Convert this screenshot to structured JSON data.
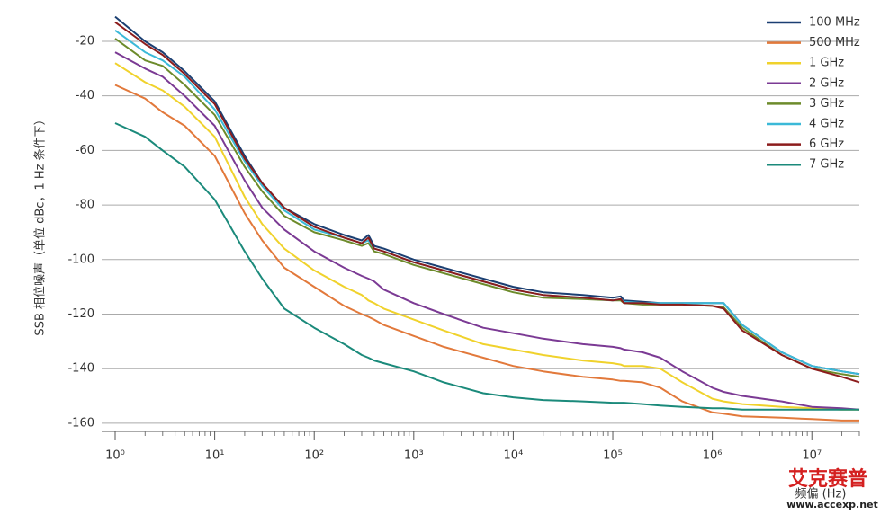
{
  "chart_data": {
    "type": "line",
    "y_label": "SSB 相位噪声（单位 dBc，1 Hz 条件下）",
    "x_label": "频偏 (Hz)",
    "xscale": "log",
    "x": [
      1,
      2,
      3,
      5,
      10,
      20,
      30,
      50,
      100,
      200,
      300,
      350,
      400,
      500,
      1000,
      2000,
      5000,
      10000,
      20000,
      50000,
      100000,
      120000,
      130000,
      200000,
      300000,
      500000,
      1000000,
      1300000,
      2000000,
      5000000,
      10000000,
      20000000,
      30000000
    ],
    "series": [
      {
        "name": "100 MHz",
        "color": "#1b3f72",
        "values": [
          -11,
          -20,
          -24,
          -31,
          -42,
          -62,
          -72,
          -81,
          -87,
          -91,
          -93,
          -91,
          -95,
          -96,
          -100,
          -103,
          -107,
          -110,
          -112,
          -113,
          -114,
          -113.5,
          -115,
          -115.5,
          -116,
          -116,
          -116,
          -116,
          -124,
          -134,
          -139,
          -141,
          -142
        ]
      },
      {
        "name": "500 MHz",
        "color": "#e2793b",
        "values": [
          -36,
          -41,
          -46,
          -51,
          -62,
          -83,
          -93,
          -103,
          -110,
          -117,
          -120,
          -121,
          -122,
          -124,
          -128,
          -132,
          -136,
          -139,
          -141,
          -143,
          -144,
          -144.5,
          -144.5,
          -145,
          -147,
          -152,
          -156,
          -156.5,
          -157.5,
          -158,
          -158.5,
          -159,
          -159
        ]
      },
      {
        "name": "1 GHz",
        "color": "#f0d22c",
        "values": [
          -28,
          -35,
          -38,
          -44,
          -55,
          -77,
          -87,
          -96,
          -104,
          -110,
          -113,
          -115,
          -116,
          -118,
          -122,
          -126,
          -131,
          -133,
          -135,
          -137,
          -138,
          -138.5,
          -139,
          -139,
          -140,
          -145,
          -151,
          -152,
          -153,
          -154,
          -154.5,
          -155,
          -155
        ]
      },
      {
        "name": "2 GHz",
        "color": "#7b3a94",
        "values": [
          -24,
          -30,
          -33,
          -40,
          -51,
          -71,
          -81,
          -89,
          -97,
          -103,
          -106,
          -107,
          -108,
          -111,
          -116,
          -120,
          -125,
          -127,
          -129,
          -131,
          -132,
          -132.5,
          -133,
          -134,
          -136,
          -141,
          -147,
          -148.5,
          -150,
          -152,
          -154,
          -154.5,
          -155
        ]
      },
      {
        "name": "3 GHz",
        "color": "#6d8b2b",
        "values": [
          -19,
          -27,
          -29,
          -36,
          -47,
          -66,
          -75,
          -84,
          -90,
          -93,
          -95,
          -94,
          -97,
          -98,
          -102,
          -105,
          -109,
          -112,
          -114,
          -114.5,
          -115,
          -115,
          -116,
          -116.5,
          -116.5,
          -116.5,
          -117,
          -117.5,
          -125,
          -135,
          -140,
          -142,
          -143
        ]
      },
      {
        "name": "4 GHz",
        "color": "#3bb9d8",
        "values": [
          -16,
          -24,
          -27,
          -33,
          -45,
          -64,
          -73,
          -82,
          -89,
          -92,
          -94,
          -93,
          -96,
          -97,
          -101,
          -104,
          -108,
          -111,
          -113,
          -114,
          -115,
          -114.5,
          -115.5,
          -116,
          -116,
          -116,
          -116,
          -116,
          -124,
          -134,
          -139,
          -141,
          -142
        ]
      },
      {
        "name": "6 GHz",
        "color": "#8c1c1c",
        "values": [
          -13,
          -21,
          -25,
          -32,
          -43,
          -63,
          -72,
          -81,
          -88,
          -92,
          -94,
          -92,
          -96,
          -97,
          -101,
          -104,
          -108,
          -111,
          -113,
          -114,
          -115,
          -114.5,
          -116,
          -116,
          -116.5,
          -116.5,
          -117,
          -118,
          -126,
          -135,
          -140,
          -143,
          -145
        ]
      },
      {
        "name": "7 GHz",
        "color": "#1b8a7b",
        "values": [
          -50,
          -55,
          -60,
          -66,
          -78,
          -97,
          -107,
          -118,
          -125,
          -131,
          -135,
          -136,
          -137,
          -138,
          -141,
          -145,
          -149,
          -150.5,
          -151.5,
          -152,
          -152.5,
          -152.5,
          -152.5,
          -153,
          -153.5,
          -154,
          -154.5,
          -154.5,
          -155,
          -155,
          -155,
          -155,
          -155
        ]
      }
    ],
    "xlim": [
      1,
      30000000
    ],
    "xticks": [
      {
        "value": 1,
        "label": "10⁰"
      },
      {
        "value": 10,
        "label": "10¹"
      },
      {
        "value": 100,
        "label": "10²"
      },
      {
        "value": 1000,
        "label": "10³"
      },
      {
        "value": 10000,
        "label": "10⁴"
      },
      {
        "value": 100000,
        "label": "10⁵"
      },
      {
        "value": 1000000,
        "label": "10⁶"
      },
      {
        "value": 10000000,
        "label": "10⁷"
      }
    ],
    "ylim": [
      -163,
      -10
    ],
    "yticks": [
      -20,
      -40,
      -60,
      -80,
      -100,
      -120,
      -140,
      -160
    ],
    "grid": true,
    "legend": "top-right"
  },
  "watermark": {
    "name": "艾克赛普",
    "url": "www.accexp.net"
  }
}
